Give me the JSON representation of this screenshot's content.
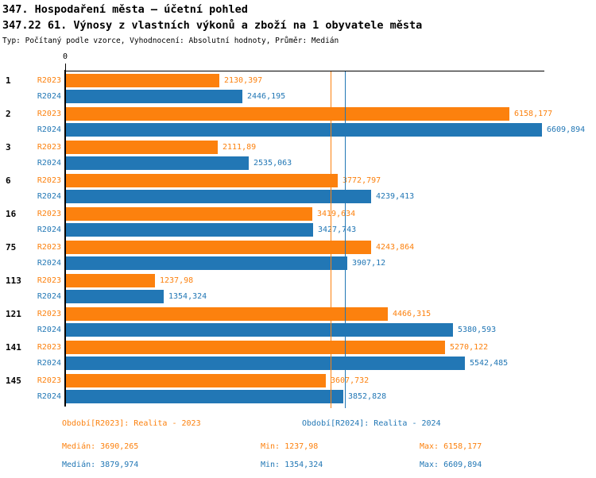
{
  "header": {
    "title": "347. Hospodaření města – účetní pohled",
    "subtitle": "347.22 61. Výnosy z vlastních výkonů a zboží na 1 obyvatele města",
    "meta": "Typ: Počítaný podle vzorce, Vyhodnocení: Absolutní hodnoty, Průměr: Medián"
  },
  "colors": {
    "r2023": "#fc810e",
    "r2024": "#2277b5",
    "axis": "#000000"
  },
  "chart_data": {
    "type": "bar",
    "orientation": "horizontal",
    "categories": [
      "1",
      "2",
      "3",
      "6",
      "16",
      "75",
      "113",
      "121",
      "141",
      "145"
    ],
    "series": [
      {
        "name": "R2023",
        "color": "#fc810e",
        "values": [
          2130.397,
          6158.177,
          2111.89,
          3772.797,
          3419.634,
          4243.864,
          1237.98,
          4466.315,
          5270.122,
          3607.732
        ],
        "labels": [
          "2130,397",
          "6158,177",
          "2111,89",
          "3772,797",
          "3419,634",
          "4243,864",
          "1237,98",
          "4466,315",
          "5270,122",
          "3607,732"
        ]
      },
      {
        "name": "R2024",
        "color": "#2277b5",
        "values": [
          2446.195,
          6609.894,
          2535.063,
          4239.413,
          3427.743,
          3907.12,
          1354.324,
          5380.593,
          5542.485,
          3852.828
        ],
        "labels": [
          "2446,195",
          "6609,894",
          "2535,063",
          "4239,413",
          "3427,743",
          "3907,12",
          "1354,324",
          "5380,593",
          "5542,485",
          "3852,828"
        ]
      }
    ],
    "xlim": [
      0,
      6656
    ],
    "axis_zero_label": "0",
    "grid": false,
    "legend_position": "bottom",
    "median_lines": [
      {
        "series": "R2023",
        "value": 3690.265,
        "color": "#fc810e"
      },
      {
        "series": "R2024",
        "value": 3879.974,
        "color": "#2277b5"
      }
    ]
  },
  "footer": {
    "legend": [
      {
        "label": "Období[R2023]: Realita - 2023"
      },
      {
        "label": "Období[R2024]: Realita - 2024"
      }
    ],
    "stats": [
      {
        "median": "Medián: 3690,265",
        "min": "Min: 1237,98",
        "max": "Max: 6158,177"
      },
      {
        "median": "Medián: 3879,974",
        "min": "Min: 1354,324",
        "max": "Max: 6609,894"
      }
    ]
  }
}
